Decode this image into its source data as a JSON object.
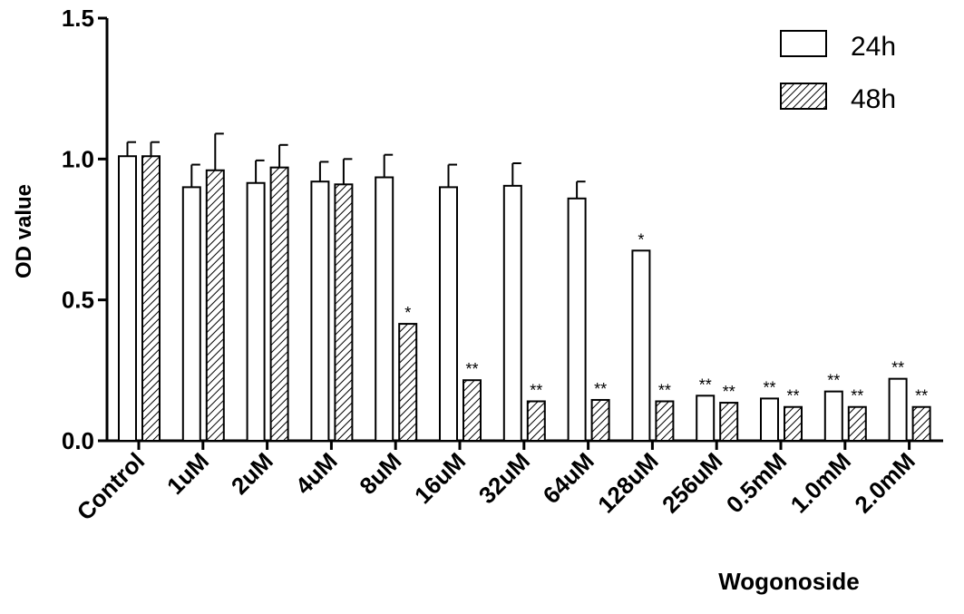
{
  "chart_data": {
    "type": "bar",
    "title": "",
    "xlabel": "Wogonoside",
    "ylabel": "OD value",
    "ylim": [
      0,
      1.5
    ],
    "yticks": [
      "0.0",
      "0.5",
      "1.0",
      "1.5"
    ],
    "ytick_values": [
      0,
      0.5,
      1.0,
      1.5
    ],
    "grid": false,
    "legend_placement": "top-right",
    "categories": [
      "Control",
      "1uM",
      "2uM",
      "4uM",
      "8uM",
      "16uM",
      "32uM",
      "64uM",
      "128uM",
      "256uM",
      "0.5mM",
      "1.0mM",
      "2.0mM"
    ],
    "series": [
      {
        "name": "24h",
        "pattern": "open",
        "values": [
          1.01,
          0.9,
          0.915,
          0.92,
          0.935,
          0.9,
          0.905,
          0.86,
          0.675,
          0.16,
          0.15,
          0.175,
          0.22
        ],
        "errors": [
          0.05,
          0.08,
          0.08,
          0.07,
          0.08,
          0.08,
          0.08,
          0.06,
          0,
          0,
          0,
          0,
          0
        ],
        "annotations": [
          "",
          "",
          "",
          "",
          "",
          "",
          "",
          "",
          "*",
          "**",
          "**",
          "**",
          "**"
        ]
      },
      {
        "name": "48h",
        "pattern": "hatched",
        "values": [
          1.01,
          0.96,
          0.97,
          0.91,
          0.415,
          0.215,
          0.14,
          0.145,
          0.14,
          0.135,
          0.12,
          0.12,
          0.12
        ],
        "errors": [
          0.05,
          0.13,
          0.08,
          0.09,
          0,
          0,
          0,
          0,
          0,
          0,
          0,
          0,
          0
        ],
        "annotations": [
          "",
          "",
          "",
          "",
          "*",
          "**",
          "**",
          "**",
          "**",
          "**",
          "**",
          "**",
          "**"
        ]
      }
    ]
  }
}
